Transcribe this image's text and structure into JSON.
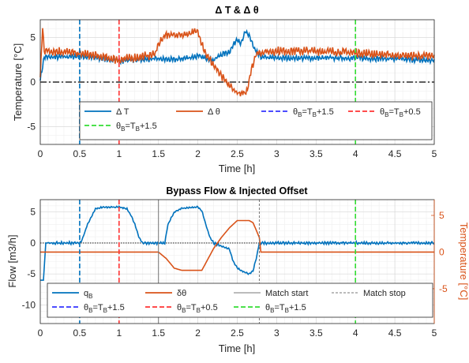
{
  "colors": {
    "blue": "#0072BD",
    "orange": "#D95319",
    "vblue": "#3333FF",
    "vred": "#FF3333",
    "vgreen": "#33DD33",
    "grid": "#DCDCDC",
    "axis": "#262626"
  },
  "chart_data": [
    {
      "type": "line",
      "title": "Δ T & Δ θ",
      "xlabel": "Time [h]",
      "ylabel": "Temperature [°C]",
      "xlim": [
        0,
        5
      ],
      "ylim": [
        -7,
        7
      ],
      "xticks": [
        "0",
        "0.5",
        "1",
        "1.5",
        "2",
        "2.5",
        "3",
        "3.5",
        "4",
        "4.5",
        "5"
      ],
      "yticks": [
        "-5",
        "0",
        "5"
      ],
      "grid": true,
      "legend": "lower-center",
      "hline": {
        "y": 0,
        "style": "dash-dot",
        "color": "black"
      },
      "vlines": [
        {
          "x": 0.5,
          "label": "θB=TB+1.5",
          "color": "blue"
        },
        {
          "x": 1.0,
          "label": "θB=TB+0.5",
          "color": "red"
        },
        {
          "x": 4.0,
          "label": "θB=TB+1.5",
          "color": "green"
        }
      ],
      "series": [
        {
          "name": "Δ T",
          "color": "blue",
          "x": [
            0,
            0.05,
            0.2,
            0.5,
            0.8,
            1.0,
            1.2,
            1.5,
            1.7,
            2.0,
            2.2,
            2.3,
            2.4,
            2.5,
            2.55,
            2.6,
            2.65,
            2.72,
            2.8,
            3.0,
            3.5,
            4.0,
            4.5,
            5.0
          ],
          "y": [
            0.3,
            2.8,
            2.8,
            2.9,
            2.6,
            2.4,
            2.5,
            2.6,
            2.5,
            2.9,
            2.5,
            3.1,
            3.4,
            4.9,
            4.3,
            5.6,
            5.3,
            3.6,
            2.8,
            2.7,
            2.7,
            2.7,
            2.6,
            2.4
          ]
        },
        {
          "name": "Δ θ",
          "color": "orange",
          "x": [
            0,
            0.03,
            0.05,
            0.1,
            0.3,
            0.6,
            1.0,
            1.25,
            1.45,
            1.5,
            1.6,
            1.8,
            2.0,
            2.05,
            2.1,
            2.2,
            2.3,
            2.4,
            2.5,
            2.55,
            2.62,
            2.68,
            2.75,
            3.0,
            3.5,
            4.0,
            4.5,
            5.0
          ],
          "y": [
            0.5,
            6.2,
            3.6,
            3.5,
            3.4,
            3.1,
            2.5,
            2.8,
            3.1,
            4.3,
            5.3,
            5.3,
            5.7,
            4.4,
            3.2,
            1.9,
            0.6,
            -0.4,
            -1.2,
            -1.4,
            -1.1,
            1.6,
            3.3,
            3.5,
            3.5,
            3.3,
            3.0,
            2.9
          ]
        }
      ]
    },
    {
      "type": "line",
      "title": "Bypass Flow & Injected Offset",
      "xlabel": "Time [h]",
      "ylabel": "Flow [m3/h]",
      "ylabel_right": "Temperature [°C]",
      "xlim": [
        0,
        5
      ],
      "ylim": [
        -13,
        7
      ],
      "ylim_right": [
        -9.75,
        7.15
      ],
      "xticks": [
        "0",
        "0.5",
        "1",
        "1.5",
        "2",
        "2.5",
        "3",
        "3.5",
        "4",
        "4.5",
        "5"
      ],
      "yticks": [
        "-10",
        "-5",
        "0",
        "5"
      ],
      "yticks_right": [
        "-5",
        "0",
        "5"
      ],
      "grid": true,
      "legend": "lower-center",
      "hline": {
        "y": 0,
        "style": "dotted",
        "color": "black"
      },
      "vlines": [
        {
          "x": 0.5,
          "label": "θB=TB+1.5",
          "color": "blue"
        },
        {
          "x": 1.0,
          "label": "θB=TB+0.5",
          "color": "red"
        },
        {
          "x": 4.0,
          "label": "θB=TB+1.5",
          "color": "green"
        },
        {
          "x": 1.5,
          "label": "Match start",
          "color": "gray"
        },
        {
          "x": 2.78,
          "label": "Match stop",
          "color": "gray"
        }
      ],
      "series": [
        {
          "name": "qB",
          "color": "blue",
          "axis": "left",
          "x": [
            0,
            0.04,
            0.07,
            0.1,
            0.5,
            0.53,
            0.6,
            0.7,
            0.8,
            1.0,
            1.1,
            1.15,
            1.2,
            1.25,
            1.3,
            1.5,
            1.58,
            1.62,
            1.7,
            1.8,
            2.0,
            2.05,
            2.1,
            2.15,
            2.2,
            2.3,
            2.4,
            2.45,
            2.5,
            2.55,
            2.65,
            2.7,
            2.75,
            2.78,
            2.85,
            3.0,
            4.0,
            5.0
          ],
          "y": [
            -6,
            -6,
            0,
            0,
            0,
            0.5,
            3,
            5.5,
            5.8,
            5.8,
            5.5,
            4.5,
            3,
            1,
            0,
            0,
            0,
            3,
            5,
            5.6,
            5.8,
            5.2,
            3,
            1,
            0,
            -0.5,
            -1,
            -3,
            -4,
            -4.5,
            -5,
            -4.5,
            -2,
            0,
            0,
            0,
            0,
            0
          ]
        },
        {
          "name": "δθ",
          "color": "orange",
          "axis": "right",
          "x": [
            0,
            1.5,
            1.6,
            1.7,
            1.8,
            2.0,
            2.05,
            2.15,
            2.2,
            2.3,
            2.4,
            2.5,
            2.65,
            2.7,
            2.78,
            2.8,
            5.0
          ],
          "y": [
            0,
            0,
            -0.9,
            -2.2,
            -2.5,
            -2.5,
            -2.5,
            -0.5,
            0.5,
            2.0,
            3.3,
            4.3,
            4.3,
            4.0,
            2.0,
            0,
            0
          ]
        }
      ]
    }
  ],
  "legend1": {
    "row1": [
      {
        "name": "dt",
        "parts": [
          {
            "t": "Δ T"
          }
        ],
        "color": "blue",
        "dash": "solid"
      },
      {
        "name": "dtheta",
        "parts": [
          {
            "t": "Δ θ"
          }
        ],
        "color": "orange",
        "dash": "solid"
      },
      {
        "name": "v1",
        "parts": [
          {
            "t": "θ"
          },
          {
            "t": "B",
            "sub": true
          },
          {
            "t": "=T"
          },
          {
            "t": "B",
            "sub": true
          },
          {
            "t": "+1.5"
          }
        ],
        "color": "vblue",
        "dash": "dashed"
      },
      {
        "name": "v2",
        "parts": [
          {
            "t": "θ"
          },
          {
            "t": "B",
            "sub": true
          },
          {
            "t": "=T"
          },
          {
            "t": "B",
            "sub": true
          },
          {
            "t": "+0.5"
          }
        ],
        "color": "vred",
        "dash": "dashed"
      }
    ],
    "row2": [
      {
        "name": "v3",
        "parts": [
          {
            "t": "θ"
          },
          {
            "t": "B",
            "sub": true
          },
          {
            "t": "=T"
          },
          {
            "t": "B",
            "sub": true
          },
          {
            "t": "+1.5"
          }
        ],
        "color": "vgreen",
        "dash": "dashed"
      }
    ]
  },
  "legend2": {
    "row1": [
      {
        "name": "qb",
        "parts": [
          {
            "t": "q"
          },
          {
            "t": "B",
            "sub": true
          }
        ],
        "color": "blue",
        "dash": "solid"
      },
      {
        "name": "dth",
        "parts": [
          {
            "t": "δθ"
          }
        ],
        "color": "orange",
        "dash": "solid"
      },
      {
        "name": "mstart",
        "parts": [
          {
            "t": "Match start"
          }
        ],
        "color": "gray",
        "dash": "solid"
      },
      {
        "name": "mstop",
        "parts": [
          {
            "t": "Match stop"
          }
        ],
        "color": "gray",
        "dash": "dashed"
      }
    ],
    "row2": [
      {
        "name": "v1",
        "parts": [
          {
            "t": "θ"
          },
          {
            "t": "B",
            "sub": true
          },
          {
            "t": "=T"
          },
          {
            "t": "B",
            "sub": true
          },
          {
            "t": "+1.5"
          }
        ],
        "color": "vblue",
        "dash": "dashed"
      },
      {
        "name": "v2",
        "parts": [
          {
            "t": "θ"
          },
          {
            "t": "B",
            "sub": true
          },
          {
            "t": "=T"
          },
          {
            "t": "B",
            "sub": true
          },
          {
            "t": "+0.5"
          }
        ],
        "color": "vred",
        "dash": "dashed"
      },
      {
        "name": "v3",
        "parts": [
          {
            "t": "θ"
          },
          {
            "t": "B",
            "sub": true
          },
          {
            "t": "=T"
          },
          {
            "t": "B",
            "sub": true
          },
          {
            "t": "+1.5"
          }
        ],
        "color": "vgreen",
        "dash": "dashed"
      }
    ]
  }
}
